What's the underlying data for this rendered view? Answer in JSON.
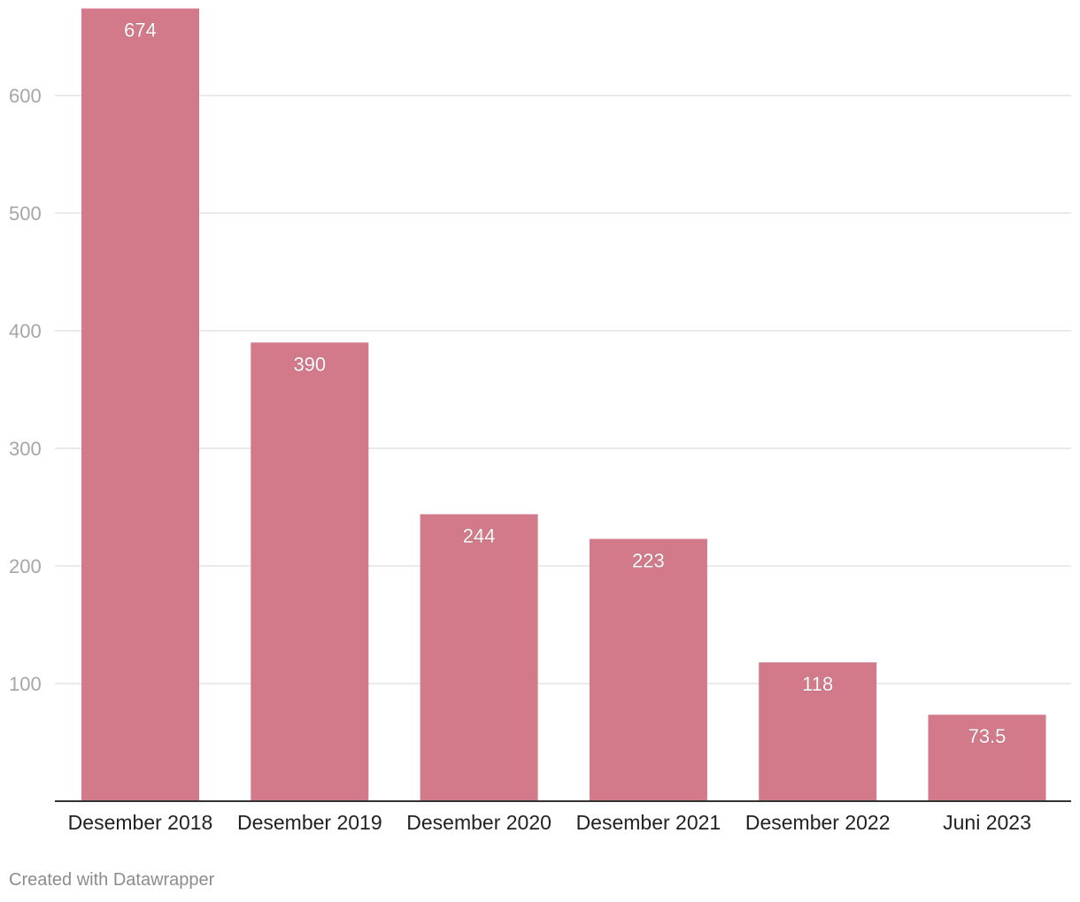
{
  "credit": "Created with Datawrapper",
  "chart_data": {
    "type": "bar",
    "categories": [
      "Desember 2018",
      "Desember 2019",
      "Desember 2020",
      "Desember 2021",
      "Desember 2022",
      "Juni 2023"
    ],
    "values": [
      674,
      390,
      244,
      223,
      118,
      73.5
    ],
    "value_labels": [
      "674",
      "390",
      "244",
      "223",
      "118",
      "73.5"
    ],
    "y_ticks": [
      100,
      200,
      300,
      400,
      500,
      600
    ],
    "ylim": [
      0,
      674
    ],
    "title": "",
    "xlabel": "",
    "ylabel": "",
    "grid": true,
    "colors": {
      "bar": "#d27a8a",
      "grid": "#e3e3e3",
      "axis": "#333333",
      "tick_label": "#a6a6a6",
      "category_label": "#222222",
      "value_label": "#ffffff"
    }
  }
}
